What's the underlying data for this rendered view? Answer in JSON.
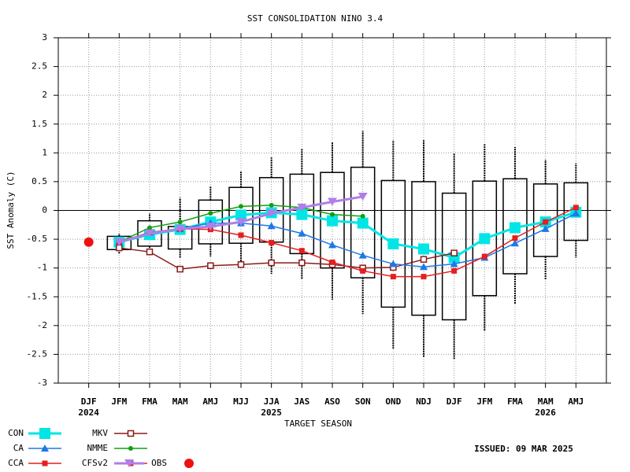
{
  "chart_data": {
    "type": "box-line",
    "title": "SST CONSOLIDATION NINO 3.4",
    "y_label": "SST Anomaly (C)",
    "x_label": "TARGET SEASON",
    "annotation": "ISSUED: 09 MAR 2025",
    "categories": [
      "DJF",
      "JFM",
      "FMA",
      "MAM",
      "AMJ",
      "MJJ",
      "JJA",
      "JAS",
      "ASO",
      "SON",
      "OND",
      "NDJ",
      "DJF",
      "JFM",
      "FMA",
      "MAM",
      "AMJ"
    ],
    "year_labels": [
      {
        "index": 0,
        "label": "2024"
      },
      {
        "index": 6,
        "label": "2025"
      },
      {
        "index": 15,
        "label": "2026"
      }
    ],
    "ylim": [
      -3,
      3
    ],
    "yticks": [
      -3,
      -2.5,
      -2,
      -1.5,
      -1,
      -0.5,
      0,
      0.5,
      1,
      1.5,
      2,
      2.5,
      3
    ],
    "grid": true,
    "boxes": [
      null,
      {
        "max": -0.4,
        "upper": -0.45,
        "lower": -0.68,
        "min": -0.75
      },
      {
        "max": -0.05,
        "upper": -0.18,
        "lower": -0.62,
        "min": -0.7
      },
      {
        "max": 0.22,
        "upper": -0.28,
        "lower": -0.67,
        "min": -0.82
      },
      {
        "max": 0.42,
        "upper": 0.18,
        "lower": -0.58,
        "min": -0.8
      },
      {
        "max": 0.68,
        "upper": 0.4,
        "lower": -0.57,
        "min": -0.9
      },
      {
        "max": 0.92,
        "upper": 0.57,
        "lower": -0.55,
        "min": -1.1
      },
      {
        "max": 1.08,
        "upper": 0.63,
        "lower": -0.75,
        "min": -1.2
      },
      {
        "max": 1.18,
        "upper": 0.66,
        "lower": -1.0,
        "min": -1.55
      },
      {
        "max": 1.38,
        "upper": 0.75,
        "lower": -1.17,
        "min": -1.8
      },
      {
        "max": 1.22,
        "upper": 0.52,
        "lower": -1.68,
        "min": -2.4
      },
      {
        "max": 1.22,
        "upper": 0.5,
        "lower": -1.82,
        "min": -2.55
      },
      {
        "max": 1.0,
        "upper": 0.3,
        "lower": -1.9,
        "min": -2.58
      },
      {
        "max": 1.15,
        "upper": 0.51,
        "lower": -1.48,
        "min": -2.1
      },
      {
        "max": 1.1,
        "upper": 0.55,
        "lower": -1.1,
        "min": -1.62
      },
      {
        "max": 0.88,
        "upper": 0.46,
        "lower": -0.8,
        "min": -1.2
      },
      {
        "max": 0.82,
        "upper": 0.48,
        "lower": -0.52,
        "min": -0.82
      }
    ],
    "series": [
      {
        "name": "CON",
        "color": "#00e5e5",
        "marker": "square",
        "values": [
          null,
          -0.55,
          -0.42,
          -0.33,
          -0.2,
          -0.08,
          -0.04,
          -0.07,
          -0.18,
          -0.22,
          -0.58,
          -0.67,
          -0.82,
          -0.49,
          -0.3,
          -0.2,
          -0.03
        ]
      },
      {
        "name": "MKV",
        "color": "#8b1a1a",
        "marker": "open-square",
        "values": [
          null,
          -0.65,
          -0.72,
          -1.02,
          -0.96,
          -0.94,
          -0.91,
          -0.91,
          -0.94,
          -1.0,
          -0.99,
          -0.85,
          -0.74,
          null,
          null,
          null,
          null
        ]
      },
      {
        "name": "CA",
        "color": "#1e78e6",
        "marker": "triangle",
        "values": [
          null,
          -0.55,
          -0.38,
          -0.32,
          -0.22,
          -0.22,
          -0.27,
          -0.4,
          -0.6,
          -0.78,
          -0.93,
          -0.98,
          -0.93,
          -0.82,
          -0.57,
          -0.32,
          -0.05
        ]
      },
      {
        "name": "NMME",
        "color": "#10a010",
        "marker": "dot",
        "values": [
          null,
          -0.55,
          -0.3,
          -0.2,
          -0.05,
          0.07,
          0.09,
          0.05,
          -0.07,
          -0.1,
          null,
          null,
          null,
          null,
          null,
          null,
          null
        ]
      },
      {
        "name": "CCA",
        "color": "#e61e1e",
        "marker": "square-small",
        "values": [
          null,
          -0.55,
          -0.38,
          -0.32,
          -0.33,
          -0.43,
          -0.56,
          -0.7,
          -0.9,
          -1.05,
          -1.15,
          -1.15,
          -1.05,
          -0.8,
          -0.48,
          -0.2,
          0.05
        ]
      },
      {
        "name": "CFSv2",
        "color": "#e61e1e",
        "marker": "square-small",
        "values": [
          null,
          null,
          null,
          null,
          null,
          null,
          null,
          null,
          null,
          null,
          null,
          null,
          null,
          null,
          null,
          null,
          null
        ]
      },
      {
        "name": "OBS",
        "color": "#b07ee8",
        "marker": "down-triangle",
        "values": [
          null,
          -0.55,
          -0.4,
          -0.32,
          -0.28,
          -0.2,
          -0.05,
          0.05,
          0.15,
          0.24,
          null,
          null,
          null,
          null,
          null,
          null,
          null
        ]
      },
      {
        "color": "#ee1111",
        "marker": "circle",
        "values": [
          -0.55,
          null,
          null,
          null,
          null,
          null,
          null,
          null,
          null,
          null,
          null,
          null,
          null,
          null,
          null,
          null,
          null
        ]
      }
    ]
  }
}
